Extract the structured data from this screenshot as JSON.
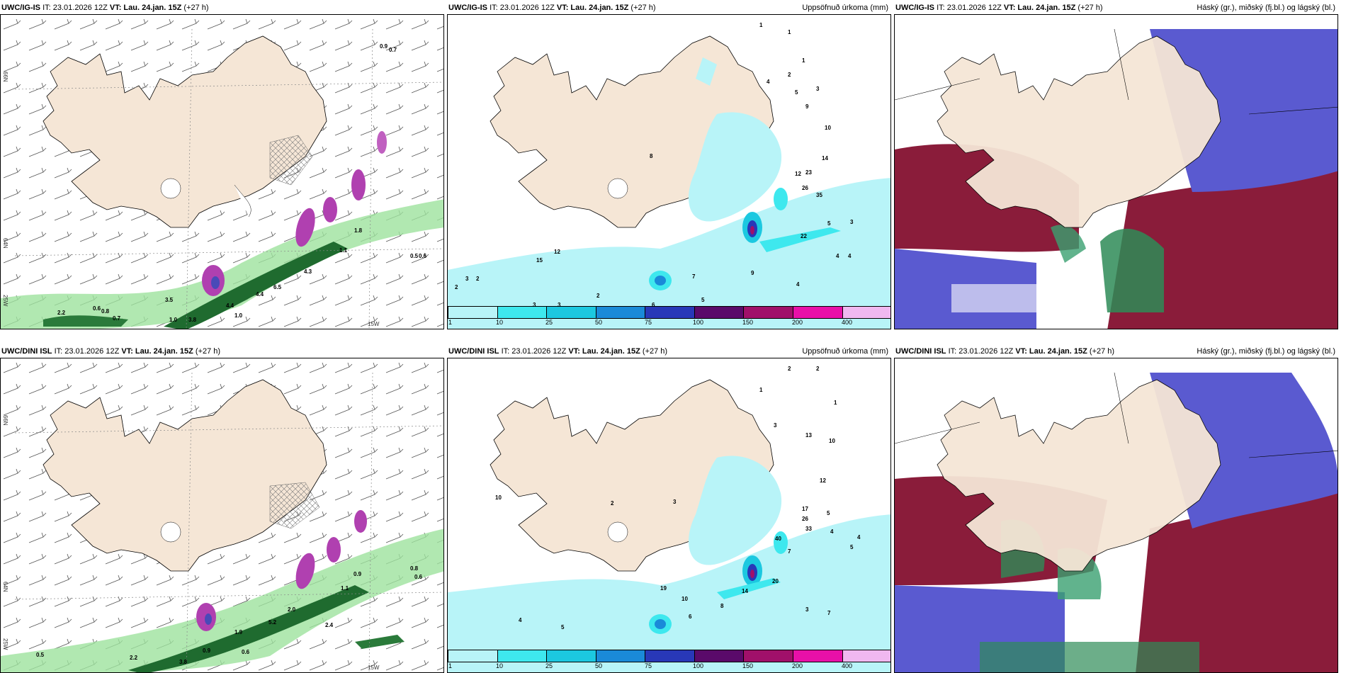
{
  "colors": {
    "land": "#f5e6d6",
    "sea_cyan": "#b8f4f8",
    "green": "#2e8b57",
    "purple": "#b040b0",
    "darkred": "#8a1c3a",
    "blue": "#5a5ad0"
  },
  "panels": [
    {
      "model": "UWC/IG-IS",
      "it": "IT: 23.01.2026 12Z",
      "vt_label": "VT:",
      "vt": "Lau. 24.jan. 15Z",
      "lead": "(+27 h)",
      "right": ""
    },
    {
      "model": "UWC/IG-IS",
      "it": "IT: 23.01.2026 12Z",
      "vt_label": "VT:",
      "vt": "Lau. 24.jan. 15Z",
      "lead": "(+27 h)",
      "right": "Uppsöfnuð úrkoma (mm)"
    },
    {
      "model": "UWC/IG-IS",
      "it": "IT: 23.01.2026 12Z",
      "vt_label": "VT:",
      "vt": "Lau. 24.jan. 15Z",
      "lead": "(+27 h)",
      "right": "Háský (gr.), miðský (fj.bl.) og lágský (bl.)"
    },
    {
      "model": "UWC/DINI ISL",
      "it": "IT: 23.01.2026 12Z",
      "vt_label": "VT:",
      "vt": "Lau. 24.jan. 15Z",
      "lead": "(+27 h)",
      "right": ""
    },
    {
      "model": "UWC/DINI ISL",
      "it": "IT: 23.01.2026 12Z",
      "vt_label": "VT:",
      "vt": "Lau. 24.jan. 15Z",
      "lead": "(+27 h)",
      "right": "Uppsöfnuð úrkoma (mm)"
    },
    {
      "model": "UWC/DINI ISL",
      "it": "IT: 23.01.2026 12Z",
      "vt_label": "VT:",
      "vt": "Lau. 24.jan. 15Z",
      "lead": "(+27 h)",
      "right": "Háský (gr.), miðský (fj.bl.) og lágský (bl.)"
    }
  ],
  "colorbar": {
    "labels": [
      "1",
      "10",
      "25",
      "50",
      "75",
      "100",
      "150",
      "200",
      "400"
    ],
    "colors": [
      "#b8f4f8",
      "#3ee8ee",
      "#1cc8e0",
      "#1a8ad8",
      "#2838b8",
      "#5a0a6a",
      "#a0106a",
      "#e810a8",
      "#f0b8f0"
    ]
  },
  "grid_labels": {
    "lat66": "66N",
    "lat64": "64N",
    "lon25": "25W",
    "lon15": "15W"
  },
  "top_wind_values": [
    "0.9",
    "0.7",
    "6.5",
    "4.3",
    "4.4",
    "1.1",
    "1.8",
    "0.5",
    "0.6",
    "3.5",
    "0.6",
    "0.8",
    "0.7",
    "2.2",
    "1.0",
    "3.8",
    "4.4",
    "1.0"
  ],
  "bottom_wind_values": [
    "0.8",
    "0.6",
    "0.5",
    "3.8",
    "1.9",
    "5.2",
    "2.0",
    "2.4",
    "2.2",
    "0.9",
    "0.6",
    "1.1",
    "0.9"
  ],
  "top_precip_values": [
    "1",
    "1",
    "1",
    "2",
    "3",
    "4",
    "5",
    "9",
    "10",
    "12",
    "14",
    "23",
    "26",
    "35",
    "22",
    "3",
    "5",
    "4",
    "4",
    "12",
    "15",
    "9",
    "2",
    "3",
    "8",
    "7",
    "2",
    "3",
    "3",
    "6",
    "5",
    "4",
    "2"
  ],
  "bottom_precip_values": [
    "2",
    "2",
    "1",
    "1",
    "3",
    "13",
    "10",
    "12",
    "17",
    "26",
    "33",
    "40",
    "5",
    "20",
    "14",
    "7",
    "8",
    "10",
    "19",
    "6",
    "5",
    "4",
    "3",
    "4",
    "5",
    "10",
    "3",
    "2",
    "4",
    "7"
  ]
}
